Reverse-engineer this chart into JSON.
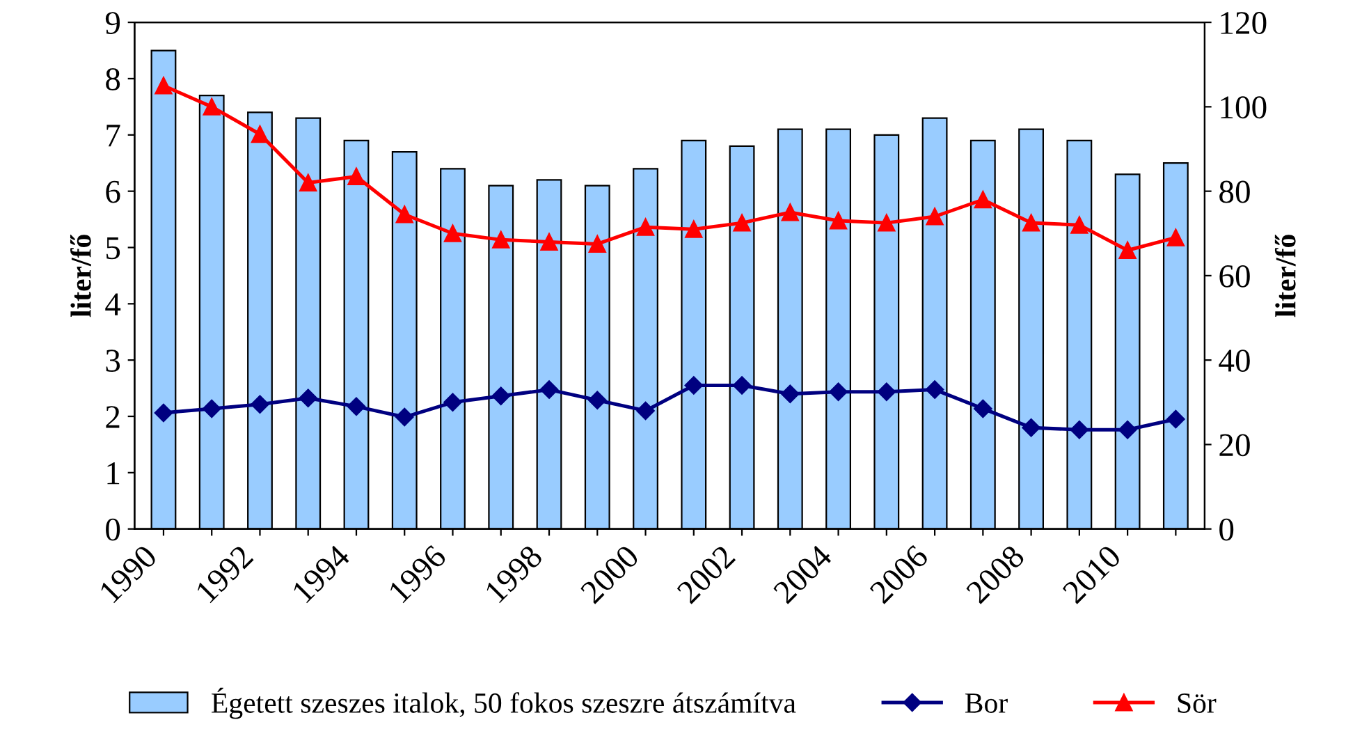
{
  "chart_data": {
    "type": "bar",
    "categories": [
      "1990",
      null,
      "1992",
      null,
      "1994",
      null,
      "1996",
      null,
      "1998",
      null,
      "2000",
      null,
      "2002",
      null,
      "2004",
      null,
      "2006",
      null,
      "2008",
      null,
      "2010",
      null
    ],
    "series": [
      {
        "name": "Égetett szeszes italok, 50 fokos szeszre átszámítva",
        "color": "#99ccff",
        "values": [
          8.5,
          7.7,
          7.4,
          7.3,
          6.9,
          6.7,
          6.4,
          6.1,
          6.2,
          6.1,
          6.4,
          6.9,
          6.8,
          7.1,
          7.1,
          7.0,
          7.3,
          6.9,
          7.1,
          6.9,
          6.3,
          6.5
        ]
      },
      {
        "name": "Bor",
        "type": "line",
        "axis": "y2",
        "marker": "diamond",
        "color": "#000080",
        "values": [
          27.5,
          28.5,
          29.5,
          31,
          29,
          26.5,
          30,
          31.5,
          33,
          30.5,
          28,
          34,
          34,
          32,
          32.5,
          32.5,
          33,
          28.5,
          24,
          23.5,
          23.5,
          26
        ]
      },
      {
        "name": "Sör",
        "type": "line",
        "axis": "y2",
        "marker": "triangle",
        "color": "#ff0000",
        "values": [
          105,
          100,
          93.5,
          82,
          83.5,
          74.5,
          70,
          68.5,
          68,
          67.5,
          71.5,
          71,
          72.5,
          75,
          73,
          72.5,
          74,
          78,
          72.5,
          72,
          66,
          69
        ]
      }
    ],
    "ylabel": "liter/fő",
    "y2label": "liter/fő",
    "ylim": [
      0,
      9
    ],
    "yticks": [
      0,
      1,
      2,
      3,
      4,
      5,
      6,
      7,
      8,
      9
    ],
    "y2lim": [
      0,
      120
    ],
    "y2ticks": [
      0,
      20,
      40,
      60,
      80,
      100,
      120
    ],
    "grid": false,
    "legend": "bottom"
  }
}
